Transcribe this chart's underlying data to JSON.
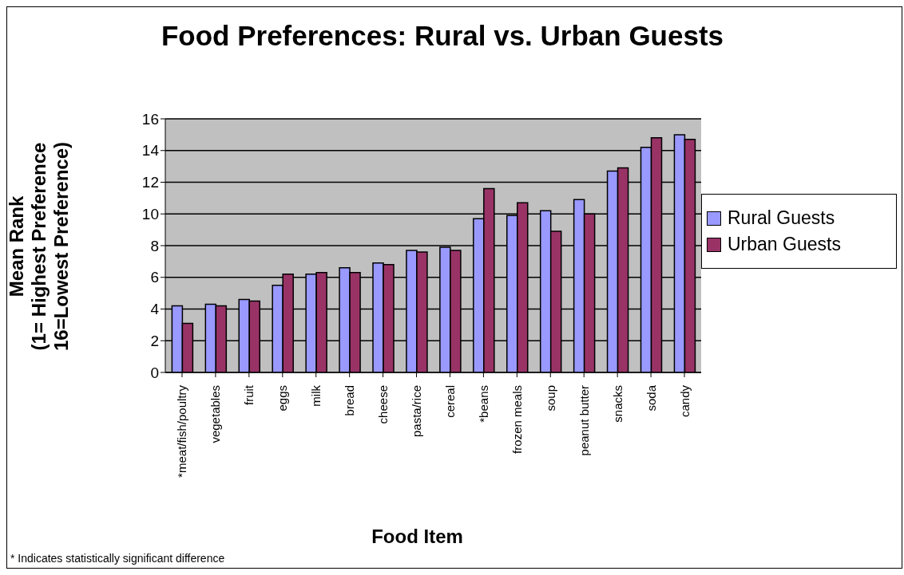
{
  "chart_data": {
    "type": "bar",
    "title": "Food Preferences: Rural vs. Urban Guests",
    "xlabel": "Food Item",
    "ylabel": "Mean Rank\n(1= Highest Preference\n16=Lowest Preference)",
    "categories": [
      "*meat/fish/poultry",
      "vegetables",
      "fruit",
      "eggs",
      "milk",
      "bread",
      "cheese",
      "pasta/rice",
      "cereal",
      "*beans",
      "frozen meals",
      "soup",
      "peanut butter",
      "snacks",
      "soda",
      "candy"
    ],
    "series": [
      {
        "name": "Rural Guests",
        "color": "#9999ff",
        "values": [
          4.2,
          4.3,
          4.6,
          5.5,
          6.2,
          6.6,
          6.9,
          7.7,
          7.9,
          9.7,
          9.9,
          10.2,
          10.9,
          12.7,
          14.2,
          15.0
        ]
      },
      {
        "name": "Urban Guests",
        "color": "#993366",
        "values": [
          3.1,
          4.2,
          4.5,
          6.2,
          6.3,
          6.3,
          6.8,
          7.6,
          7.7,
          11.6,
          10.7,
          8.9,
          10.0,
          12.9,
          14.8,
          14.7
        ]
      }
    ],
    "ylim": [
      0,
      16
    ],
    "yticks": [
      0,
      2,
      4,
      6,
      8,
      10,
      12,
      14,
      16
    ],
    "grid": "y",
    "legend": "right",
    "annotations": [
      "* Indicates statistically significant difference"
    ]
  }
}
